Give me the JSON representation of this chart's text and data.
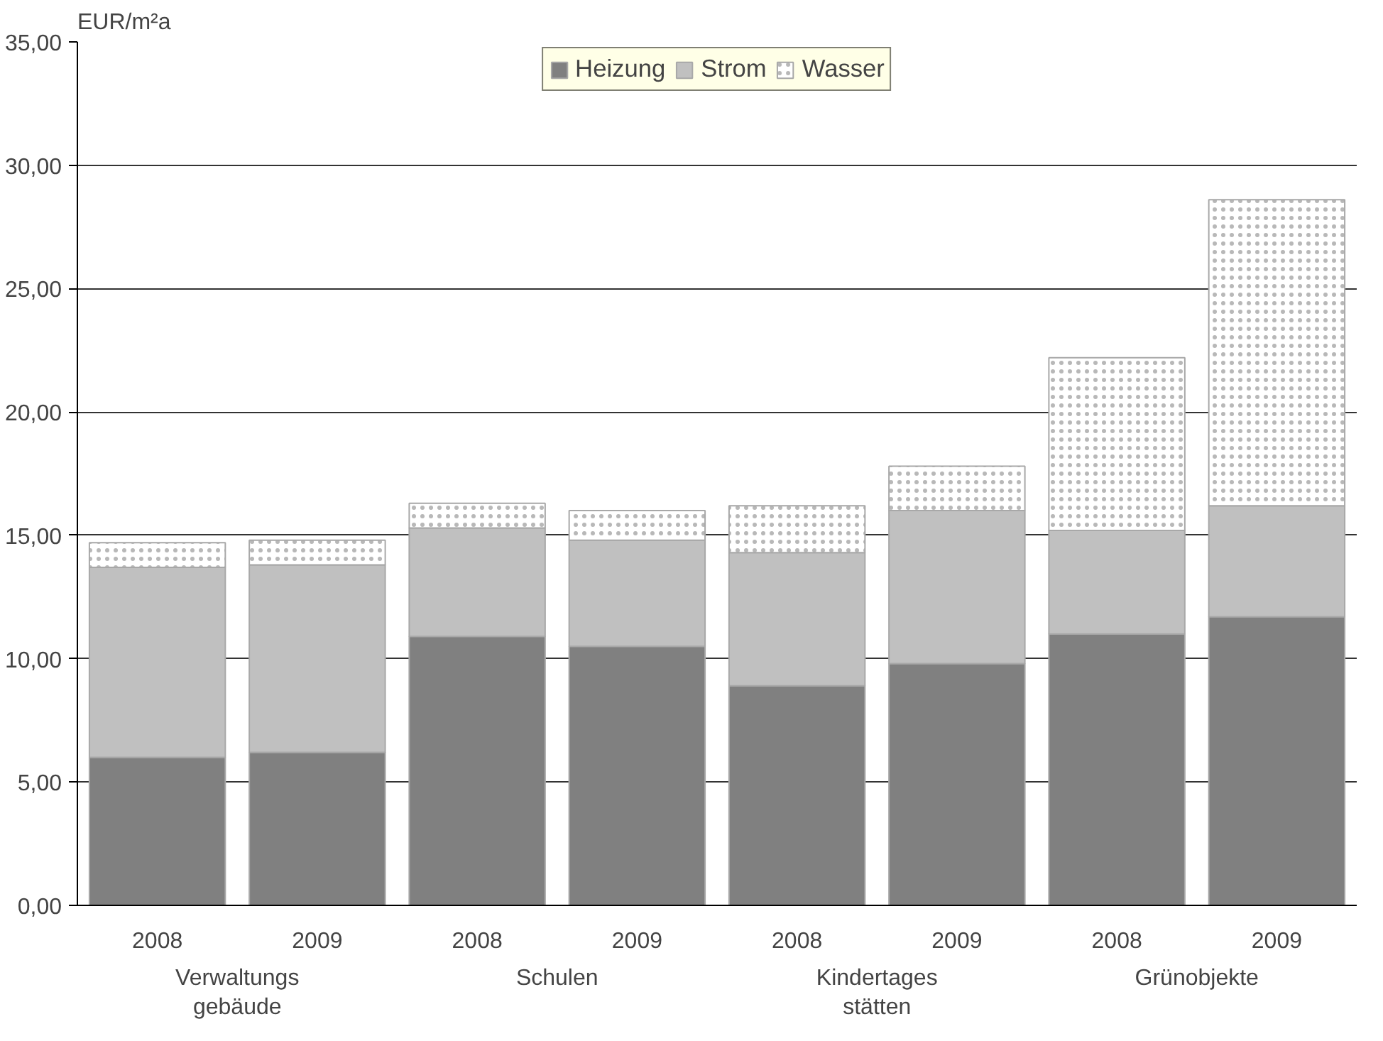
{
  "chart_data": {
    "type": "bar",
    "stacked": true,
    "ylabel": "EUR/m²a",
    "categories": [
      "2008",
      "2009",
      "2008",
      "2009",
      "2008",
      "2009",
      "2008",
      "2009"
    ],
    "annotations": [
      "Verwaltungs\ngebäude",
      "Schulen",
      "Kindertages\nstätten",
      "Grünobjekte"
    ],
    "series": [
      {
        "name": "Heizung",
        "color": "#808080",
        "values": [
          6.0,
          6.2,
          10.9,
          10.5,
          8.9,
          9.8,
          11.0,
          11.7
        ]
      },
      {
        "name": "Strom",
        "color": "#c0c0c0",
        "values": [
          7.7,
          7.6,
          4.4,
          4.3,
          5.4,
          6.2,
          4.2,
          4.5
        ]
      },
      {
        "name": "Wasser",
        "color": "#ffffff",
        "values": [
          1.0,
          1.0,
          1.0,
          1.2,
          1.9,
          1.8,
          7.0,
          12.4
        ]
      }
    ],
    "ylim": [
      0,
      35
    ],
    "yticks": [
      {
        "value": 0,
        "label": "0,00"
      },
      {
        "value": 5,
        "label": "5,00"
      },
      {
        "value": 10,
        "label": "10,00"
      },
      {
        "value": 15,
        "label": "15,00"
      },
      {
        "value": 20,
        "label": "20,00"
      },
      {
        "value": 25,
        "label": "25,00"
      },
      {
        "value": 30,
        "label": "30,00"
      },
      {
        "value": 35,
        "label": "35,00"
      }
    ],
    "grid": "y",
    "legend": "top"
  }
}
